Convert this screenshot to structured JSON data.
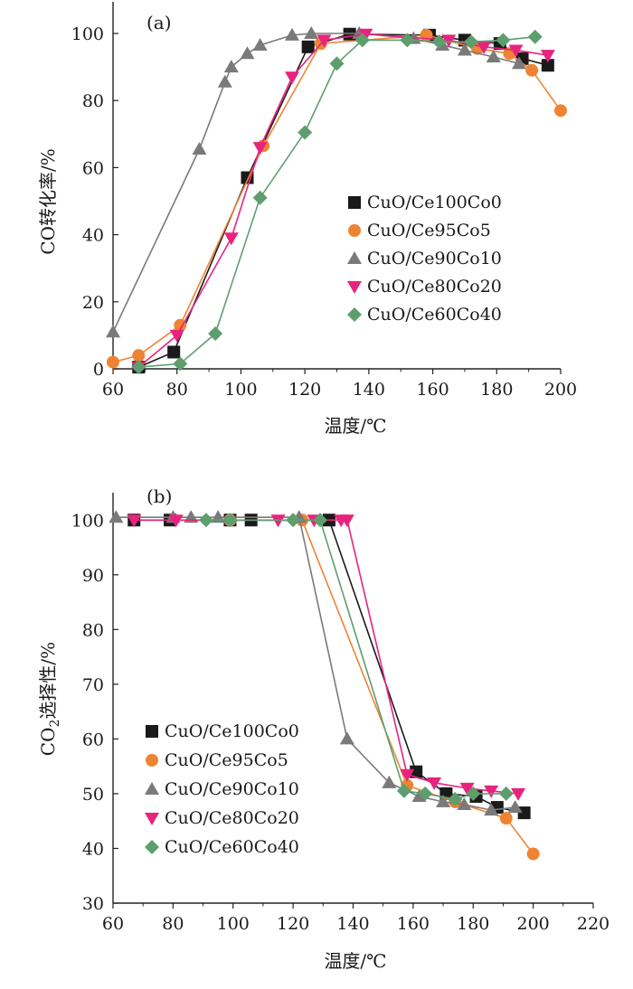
{
  "colors": {
    "CuO/Ce100Co0": "#1a1a1a",
    "CuO/Ce95Co5": "#ee8433",
    "CuO/Ce90Co10": "#7a7a7a",
    "CuO/Ce80Co20": "#e8237e",
    "CuO/Ce60Co40": "#5e9e6e"
  },
  "chart_data": [
    {
      "type": "line",
      "panel_label": "(a)",
      "xlabel": "温度/℃",
      "ylabel": "CO转化率/%",
      "xlim": [
        60,
        200
      ],
      "ylim": [
        0,
        100
      ],
      "xticks": [
        "60",
        "80",
        "100",
        "120",
        "140",
        "160",
        "180",
        "200"
      ],
      "yticks": [
        "0",
        "20",
        "40",
        "60",
        "80",
        "100"
      ],
      "legend": [
        "CuO/Ce100Co0",
        "CuO/Ce95Co5",
        "CuO/Ce90Co10",
        "CuO/Ce80Co20",
        "CuO/Ce60Co40"
      ],
      "legend_position": "center-right",
      "series": [
        {
          "name": "CuO/Ce100Co0",
          "marker": "square",
          "x": [
            68,
            79,
            102,
            121,
            134,
            159,
            170,
            181,
            188,
            196
          ],
          "y": [
            0.5,
            5,
            57,
            96,
            99.8,
            99.5,
            98,
            97,
            92.5,
            90.5
          ]
        },
        {
          "name": "CuO/Ce95Co5",
          "marker": "circle",
          "x": [
            60,
            68,
            81,
            107,
            125,
            158,
            174,
            184,
            191,
            200
          ],
          "y": [
            2,
            4,
            13,
            66.5,
            97,
            99.5,
            95.5,
            94,
            89,
            77
          ]
        },
        {
          "name": "CuO/Ce90Co10",
          "marker": "triangle-up",
          "x": [
            60,
            87,
            95,
            97,
            102,
            106,
            116,
            122,
            137,
            154,
            163,
            170,
            179,
            187
          ],
          "y": [
            11,
            65.5,
            85.5,
            90,
            94,
            96.5,
            99.5,
            100,
            100,
            98.5,
            96.5,
            95,
            93,
            91
          ]
        },
        {
          "name": "CuO/Ce80Co20",
          "marker": "triangle-down",
          "x": [
            68,
            80,
            97,
            106,
            116,
            126,
            139,
            165,
            176,
            186,
            196
          ],
          "y": [
            0.5,
            10,
            39,
            66,
            87,
            98,
            99.8,
            98,
            96,
            95,
            93.5
          ]
        },
        {
          "name": "CuO/Ce60Co40",
          "marker": "diamond",
          "x": [
            68,
            81,
            92,
            106,
            120,
            130,
            138,
            152,
            162,
            172,
            182,
            192
          ],
          "y": [
            0.5,
            1.5,
            10.5,
            51,
            70.5,
            91,
            98,
            98,
            97.5,
            97.5,
            98,
            99
          ]
        }
      ]
    },
    {
      "type": "line",
      "panel_label": "(b)",
      "xlabel": "温度/℃",
      "ylabel_main": "CO",
      "ylabel_sub": "2",
      "ylabel_rest": "选择性/%",
      "xlim": [
        60,
        220
      ],
      "ylim": [
        30,
        105
      ],
      "xticks": [
        "60",
        "80",
        "100",
        "120",
        "140",
        "160",
        "180",
        "200",
        "220"
      ],
      "yticks": [
        "30",
        "40",
        "50",
        "60",
        "70",
        "80",
        "90",
        "100"
      ],
      "legend": [
        "CuO/Ce100Co0",
        "CuO/Ce95Co5",
        "CuO/Ce90Co10",
        "CuO/Ce80Co20",
        "CuO/Ce60Co40"
      ],
      "legend_position": "lower-left",
      "series": [
        {
          "name": "CuO/Ce100Co0",
          "marker": "square",
          "x": [
            67,
            79,
            99,
            106,
            132,
            161,
            171,
            181,
            188,
            197
          ],
          "y": [
            100,
            100,
            100,
            100,
            100,
            54,
            50,
            49.5,
            47.5,
            46.5
          ]
        },
        {
          "name": "CuO/Ce95Co5",
          "marker": "circle",
          "x": [
            99,
            123,
            158,
            174,
            191,
            200
          ],
          "y": [
            100,
            100,
            51.5,
            48.5,
            45.5,
            39
          ]
        },
        {
          "name": "CuO/Ce90Co10",
          "marker": "triangle-up",
          "x": [
            61,
            80,
            86,
            95,
            122,
            138,
            152,
            162,
            170,
            177,
            186,
            194
          ],
          "y": [
            100.5,
            100.5,
            100.5,
            100.5,
            100.5,
            60,
            52,
            49.5,
            48.5,
            48,
            47,
            47.5
          ]
        },
        {
          "name": "CuO/Ce80Co20",
          "marker": "triangle-down",
          "x": [
            67,
            81,
            115,
            127,
            136,
            138,
            158,
            167,
            178,
            186,
            195
          ],
          "y": [
            100,
            100,
            100,
            100,
            100,
            100,
            53.5,
            52,
            51,
            50.5,
            50
          ]
        },
        {
          "name": "CuO/Ce60Co40",
          "marker": "diamond",
          "x": [
            91,
            99,
            120,
            129,
            157,
            164,
            174,
            180,
            191
          ],
          "y": [
            100,
            100,
            100,
            100,
            50.5,
            50,
            49,
            50,
            50
          ]
        }
      ]
    }
  ]
}
